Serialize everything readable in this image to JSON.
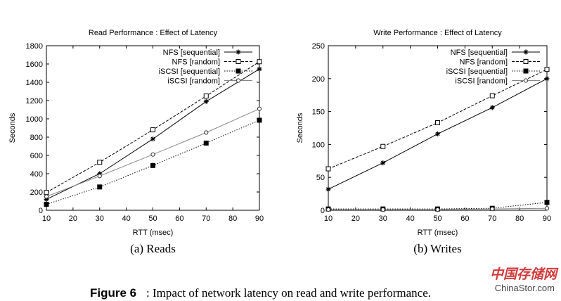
{
  "caption": {
    "label": "Figure 6",
    "text": ": Impact of network latency on read and write performance."
  },
  "watermark": {
    "cn": "中国存储网",
    "en": "ChinaStor.com",
    "color": "#d23a3a"
  },
  "chart_data": [
    {
      "type": "line",
      "title": "Read Performance : Effect of Latency",
      "xlabel": "RTT (msec)",
      "ylabel": "Seconds",
      "subcaption": "(a) Reads",
      "xlim": [
        10,
        90
      ],
      "ylim": [
        0,
        1800
      ],
      "xticks": [
        10,
        20,
        30,
        40,
        50,
        60,
        70,
        80,
        90
      ],
      "yticks": [
        0,
        200,
        400,
        600,
        800,
        1000,
        1200,
        1400,
        1600,
        1800
      ],
      "grid": false,
      "legend_position": "top-right",
      "x": [
        10,
        30,
        50,
        70,
        90
      ],
      "series": [
        {
          "name": "NFS [sequential]",
          "values": [
            120,
            400,
            780,
            1190,
            1545
          ],
          "marker": "star",
          "dash": "solid",
          "color": "#000000"
        },
        {
          "name": "NFS [random]",
          "values": [
            195,
            525,
            880,
            1250,
            1625
          ],
          "marker": "open-square",
          "dash": "dashed",
          "color": "#000000"
        },
        {
          "name": "iSCSI [sequential]",
          "values": [
            65,
            255,
            490,
            735,
            985
          ],
          "marker": "filled-square",
          "dash": "dotted",
          "color": "#000000"
        },
        {
          "name": "iSCSI [random]",
          "values": [
            150,
            375,
            610,
            850,
            1110
          ],
          "marker": "open-circle",
          "dash": "solid",
          "color": "#888888"
        }
      ]
    },
    {
      "type": "line",
      "title": "Write Performance : Effect of Latency",
      "xlabel": "RTT (msec)",
      "ylabel": "Seconds",
      "subcaption": "(b) Writes",
      "xlim": [
        10,
        90
      ],
      "ylim": [
        0,
        250
      ],
      "xticks": [
        10,
        20,
        30,
        40,
        50,
        60,
        70,
        80,
        90
      ],
      "yticks": [
        0,
        50,
        100,
        150,
        200,
        250
      ],
      "grid": false,
      "legend_position": "top-right",
      "x": [
        10,
        30,
        50,
        70,
        90
      ],
      "series": [
        {
          "name": "NFS [sequential]",
          "values": [
            32,
            72,
            116,
            156,
            200
          ],
          "marker": "star",
          "dash": "solid",
          "color": "#000000"
        },
        {
          "name": "NFS [random]",
          "values": [
            63,
            97,
            133,
            174,
            214
          ],
          "marker": "open-square",
          "dash": "dashed",
          "color": "#000000"
        },
        {
          "name": "iSCSI [sequential]",
          "values": [
            2,
            2,
            2,
            3,
            12
          ],
          "marker": "filled-square",
          "dash": "dotted",
          "color": "#000000"
        },
        {
          "name": "iSCSI [random]",
          "values": [
            1,
            1,
            1,
            2,
            3
          ],
          "marker": "open-circle",
          "dash": "solid",
          "color": "#888888"
        }
      ]
    }
  ]
}
